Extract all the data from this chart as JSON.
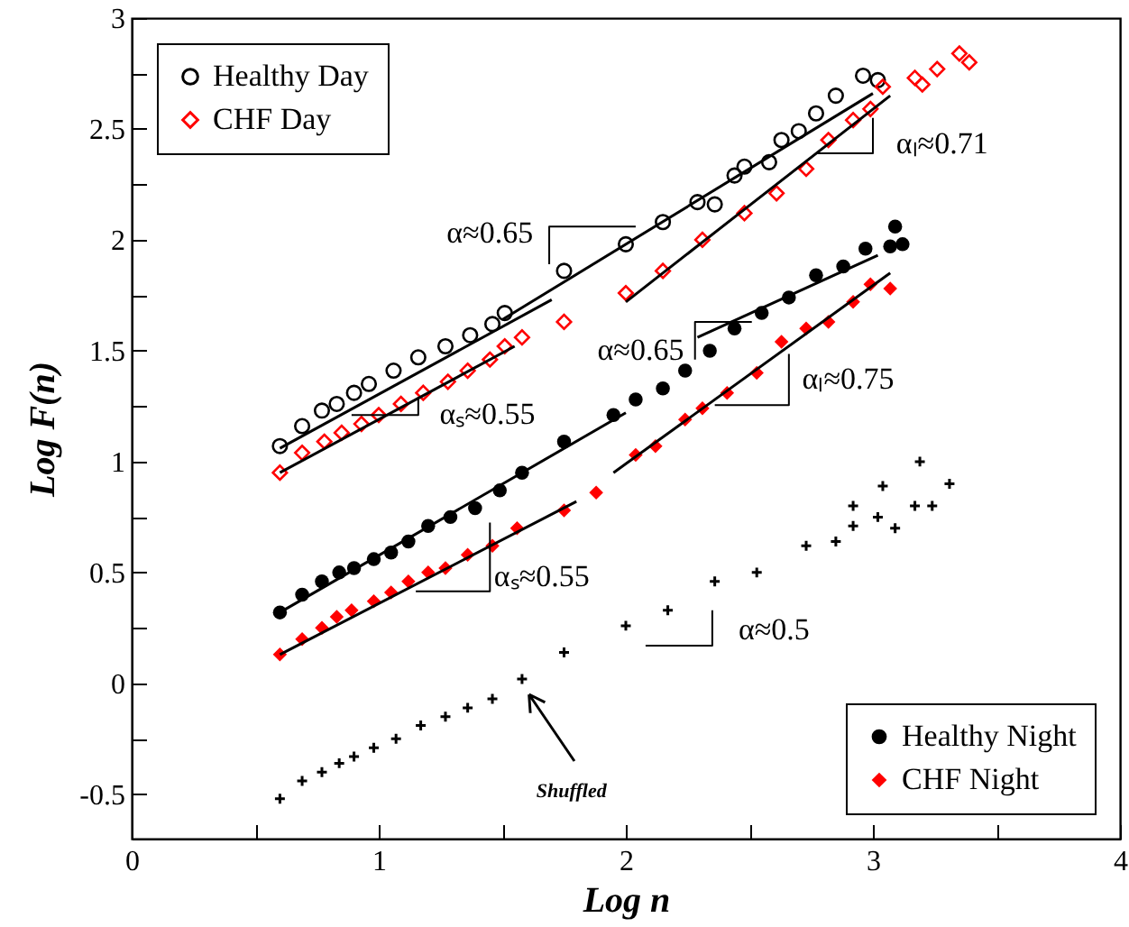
{
  "chart_data": {
    "type": "scatter",
    "xlabel": "Log n",
    "ylabel": "Log F(n)",
    "xlim": [
      0,
      4
    ],
    "ylim": [
      -0.7,
      3
    ],
    "xticks": [
      0,
      {
        "value": 0.5,
        "label": null
      },
      1,
      {
        "value": 1.5,
        "label": null
      },
      2,
      {
        "value": 2.5,
        "label": null
      },
      3,
      {
        "value": 3.5,
        "label": null
      },
      4
    ],
    "yticks": [
      {
        "value": -0.5,
        "label": "-0.5"
      },
      {
        "value": -0.25,
        "label": null
      },
      0,
      {
        "value": 0.25,
        "label": null
      },
      0.5,
      {
        "value": 0.75,
        "label": null
      },
      1,
      {
        "value": 1.25,
        "label": null
      },
      1.5,
      {
        "value": 1.75,
        "label": null
      },
      2,
      {
        "value": 2.25,
        "label": null
      },
      2.5,
      {
        "value": 2.75,
        "label": null
      },
      3
    ],
    "grid": false,
    "legend": "bottom right",
    "series": [
      {
        "name": "Healthy Day",
        "color": "#000000",
        "marker": "circle",
        "x": [
          0.6,
          0.69,
          0.77,
          0.83,
          0.9,
          0.96,
          1.06,
          1.16,
          1.27,
          1.37,
          1.46,
          1.51,
          1.75,
          2.0,
          2.15,
          2.29,
          2.36,
          2.44,
          2.48,
          2.58,
          2.63,
          2.7,
          2.77,
          2.85,
          2.96,
          3.02
        ],
        "values": [
          1.07,
          1.16,
          1.23,
          1.26,
          1.31,
          1.35,
          1.41,
          1.47,
          1.52,
          1.57,
          1.62,
          1.67,
          1.86,
          1.98,
          2.08,
          2.17,
          2.16,
          2.29,
          2.33,
          2.35,
          2.45,
          2.49,
          2.57,
          2.65,
          2.74,
          2.72
        ]
      },
      {
        "name": "CHF Day",
        "color": "#ff0000",
        "marker": "diamond",
        "x": [
          0.6,
          0.69,
          0.78,
          0.85,
          0.93,
          1.0,
          1.09,
          1.18,
          1.28,
          1.36,
          1.45,
          1.51,
          1.58,
          1.75,
          2.0,
          2.15,
          2.31,
          2.48,
          2.61,
          2.73,
          2.82,
          2.92,
          2.99,
          3.04,
          3.17,
          3.2,
          3.26,
          3.35,
          3.39
        ],
        "values": [
          0.95,
          1.04,
          1.09,
          1.13,
          1.17,
          1.21,
          1.26,
          1.31,
          1.36,
          1.41,
          1.46,
          1.52,
          1.56,
          1.63,
          1.76,
          1.86,
          2.0,
          2.12,
          2.21,
          2.32,
          2.45,
          2.54,
          2.59,
          2.69,
          2.73,
          2.7,
          2.77,
          2.84,
          2.8
        ]
      },
      {
        "name": "Healthy Night",
        "color": "#000000",
        "marker": "circle",
        "x": [
          0.6,
          0.69,
          0.77,
          0.84,
          0.9,
          0.98,
          1.05,
          1.12,
          1.2,
          1.29,
          1.39,
          1.49,
          1.58,
          1.75,
          1.95,
          2.04,
          2.15,
          2.24,
          2.34,
          2.44,
          2.55,
          2.66,
          2.77,
          2.88,
          2.97,
          3.07,
          3.09,
          3.12
        ],
        "values": [
          0.32,
          0.4,
          0.46,
          0.5,
          0.52,
          0.56,
          0.59,
          0.64,
          0.71,
          0.75,
          0.79,
          0.87,
          0.95,
          1.09,
          1.21,
          1.28,
          1.33,
          1.41,
          1.5,
          1.6,
          1.67,
          1.74,
          1.84,
          1.88,
          1.96,
          1.97,
          2.06,
          1.98
        ]
      },
      {
        "name": "CHF Night",
        "color": "#ff0000",
        "marker": "diamond",
        "x": [
          0.6,
          0.69,
          0.77,
          0.83,
          0.89,
          0.98,
          1.05,
          1.12,
          1.2,
          1.27,
          1.36,
          1.46,
          1.56,
          1.75,
          1.88,
          2.04,
          2.12,
          2.24,
          2.31,
          2.41,
          2.53,
          2.63,
          2.73,
          2.82,
          2.92,
          2.99,
          3.07
        ],
        "values": [
          0.13,
          0.2,
          0.25,
          0.3,
          0.33,
          0.37,
          0.41,
          0.46,
          0.5,
          0.52,
          0.58,
          0.62,
          0.7,
          0.78,
          0.86,
          1.03,
          1.07,
          1.19,
          1.24,
          1.31,
          1.4,
          1.54,
          1.6,
          1.63,
          1.72,
          1.8,
          1.78
        ]
      },
      {
        "color": "#000000",
        "marker": "cross",
        "x": [
          0.6,
          0.69,
          0.77,
          0.84,
          0.9,
          0.98,
          1.07,
          1.17,
          1.27,
          1.36,
          1.46,
          1.58,
          1.75,
          2.0,
          2.17,
          2.36,
          2.53,
          2.73,
          2.85,
          2.92,
          2.92,
          3.02,
          3.04,
          3.09,
          3.17,
          3.19,
          3.24,
          3.31
        ],
        "values": [
          -0.52,
          -0.44,
          -0.4,
          -0.36,
          -0.33,
          -0.29,
          -0.25,
          -0.19,
          -0.15,
          -0.11,
          -0.07,
          0.02,
          0.14,
          0.26,
          0.33,
          0.46,
          0.5,
          0.62,
          0.64,
          0.71,
          0.8,
          0.75,
          0.89,
          0.7,
          0.8,
          1.0,
          0.8,
          0.9
        ]
      },
      {
        "type": "line",
        "color": "#000000",
        "x": [
          0.6,
          1.7
        ],
        "values": [
          1.06,
          1.73
        ]
      },
      {
        "type": "line",
        "color": "#000000",
        "x": [
          1.5,
          3.0
        ],
        "values": [
          1.64,
          2.66
        ]
      },
      {
        "type": "line",
        "color": "#000000",
        "x": [
          0.6,
          1.55
        ],
        "values": [
          0.95,
          1.52
        ]
      },
      {
        "type": "line",
        "color": "#000000",
        "x": [
          2.0,
          3.07
        ],
        "values": [
          1.72,
          2.65
        ]
      },
      {
        "type": "line",
        "color": "#000000",
        "x": [
          0.6,
          2.0
        ],
        "values": [
          0.32,
          1.22
        ]
      },
      {
        "type": "line",
        "color": "#000000",
        "x": [
          2.29,
          3.02
        ],
        "values": [
          1.56,
          1.93
        ]
      },
      {
        "type": "line",
        "color": "#000000",
        "x": [
          0.6,
          1.8
        ],
        "values": [
          0.13,
          0.82
        ]
      },
      {
        "type": "line",
        "color": "#000000",
        "x": [
          1.95,
          3.07
        ],
        "values": [
          0.95,
          1.85
        ]
      }
    ],
    "annotations": [
      "α≈0.65",
      "αₗ≈0.71",
      "αₛ≈0.55",
      "α≈0.65",
      {
        "text": "αₗ≈0.75",
        "x": 2.51,
        "y": 1.37
      },
      {
        "text": "αₛ≈0.55",
        "x": 1.3,
        "y": 0.57
      },
      "α≈0.5",
      "Shuffled"
    ]
  }
}
